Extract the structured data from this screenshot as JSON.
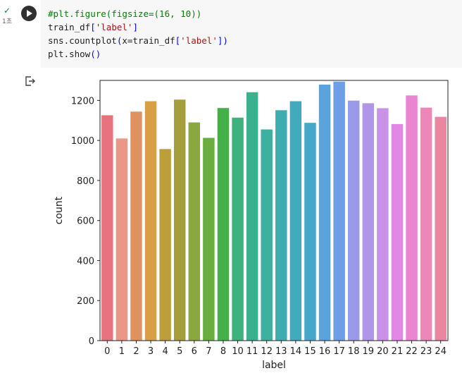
{
  "cell": {
    "status_icon": "check-icon",
    "status_color": "#0b8043",
    "exec_time": "1초",
    "code_lines": [
      [
        {
          "t": "#plt.figure(figsize=(16, 10))",
          "c": "c-comment"
        }
      ],
      [
        {
          "t": "train_df",
          "c": ""
        },
        {
          "t": "[",
          "c": "c-punc"
        },
        {
          "t": "'label'",
          "c": "c-str"
        },
        {
          "t": "]",
          "c": "c-punc"
        }
      ],
      [
        {
          "t": "sns.countplot",
          "c": ""
        },
        {
          "t": "(",
          "c": "c-punc"
        },
        {
          "t": "x=train_df",
          "c": ""
        },
        {
          "t": "[",
          "c": "c-punc"
        },
        {
          "t": "'label'",
          "c": "c-str"
        },
        {
          "t": "]",
          "c": "c-punc"
        },
        {
          "t": ")",
          "c": "c-punc"
        }
      ],
      [
        {
          "t": "plt.show",
          "c": ""
        },
        {
          "t": "()",
          "c": "c-punc"
        }
      ]
    ]
  },
  "chart_data": {
    "type": "bar",
    "xlabel": "label",
    "ylabel": "count",
    "ylim": [
      0,
      1300
    ],
    "yticks": [
      0,
      200,
      400,
      600,
      800,
      1000,
      1200
    ],
    "grid": false,
    "categories": [
      "0",
      "1",
      "2",
      "3",
      "4",
      "5",
      "6",
      "7",
      "8",
      "10",
      "11",
      "12",
      "13",
      "14",
      "15",
      "16",
      "17",
      "18",
      "19",
      "20",
      "21",
      "22",
      "23",
      "24"
    ],
    "values": [
      1126,
      1010,
      1144,
      1196,
      957,
      1204,
      1090,
      1013,
      1162,
      1114,
      1241,
      1055,
      1151,
      1196,
      1088,
      1279,
      1294,
      1199,
      1186,
      1161,
      1082,
      1225,
      1164,
      1118
    ],
    "colors": [
      "#e8737f",
      "#eb9787",
      "#df915e",
      "#d99e48",
      "#bc9e3b",
      "#a49e3b",
      "#8ba73f",
      "#6bae3f",
      "#44b04a",
      "#3cb27d",
      "#3bb08f",
      "#3db09f",
      "#3daeaf",
      "#3fabbd",
      "#46a7cb",
      "#5aa3dc",
      "#6d9ee6",
      "#9b9ae8",
      "#b096e6",
      "#c792e8",
      "#e187e6",
      "#e985d2",
      "#eb87b9",
      "#eb86a0"
    ]
  }
}
